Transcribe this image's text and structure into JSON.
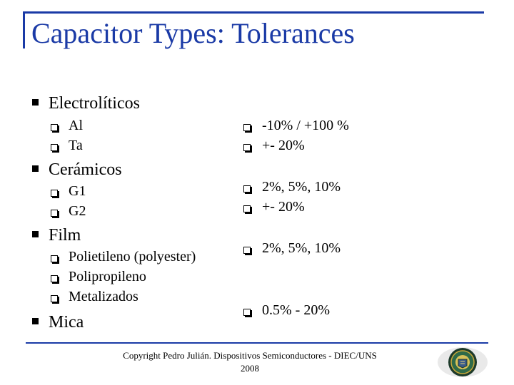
{
  "slide": {
    "title": "Capacitor Types: Tolerances",
    "left": [
      {
        "category": "Electrolíticos",
        "items": [
          "Al",
          "Ta"
        ]
      },
      {
        "category": "Cerámicos",
        "items": [
          "G1",
          "G2"
        ]
      },
      {
        "category": "Film",
        "items": [
          "Polietileno (polyester)",
          "Polipropileno",
          "Metalizados"
        ]
      },
      {
        "category": "Mica",
        "items": []
      }
    ],
    "right": [
      "-10% / +100 %",
      "+- 20%",
      "2%, 5%, 10%",
      "+- 20%",
      "2%, 5%, 10%",
      "0.5% - 20%"
    ],
    "footer_line1": "Copyright Pedro Julián. Dispositivos Semiconductores - DIEC/UNS",
    "footer_line2": "2008"
  },
  "colors": {
    "accent": "#1a3aa6",
    "text": "#000000"
  },
  "icons": {
    "level1_bullet": "filled-square",
    "level2_bullet": "hollow-square-shadow",
    "seal": "university-seal"
  }
}
